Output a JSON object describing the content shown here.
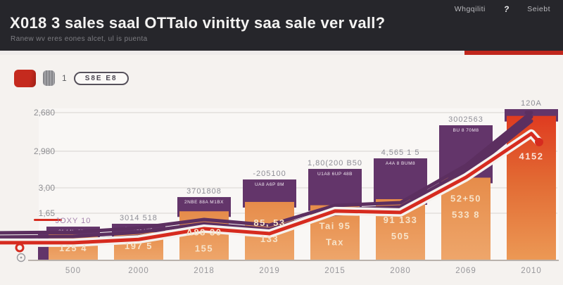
{
  "header": {
    "title": "X018 3 sales saal OTTalo vinitty saa sale ver vall?",
    "subtitle": "Ranew wv eres eones alcet, ul is puenta",
    "menu": [
      {
        "label": "Whgqiliti"
      },
      {
        "label": "Seiebt"
      }
    ],
    "help_icon": "?"
  },
  "legend": {
    "count_label": "1",
    "pill_label": "S8E E8",
    "red_swatch": "#c52a1e",
    "gray_swatch": "#8e8e92"
  },
  "colors": {
    "header_bg": "#26262b",
    "accent_red": "#c0271d",
    "page_bg": "#f5f2ef",
    "plot_bg": "#f9f7f5",
    "grid": "#dddad6",
    "bar_orange_top": "#e68c4a",
    "bar_orange_bottom": "#eea66b",
    "bar_red_top": "#df3b20",
    "bar_red_bottom": "#ec9955",
    "purple": "#63356a",
    "red_line": "#d62b1f",
    "purple_line": "#5c2f60",
    "axis_text": "#8f8f93",
    "inner_text": "#f7e3c9"
  },
  "chart_data": {
    "type": "bar",
    "title": "",
    "xlabel": "",
    "ylabel": "",
    "grid": true,
    "legend_position": "top-left",
    "ylim": [
      0,
      2870
    ],
    "categories": [
      "500",
      "2000",
      "2018",
      "2019",
      "2015",
      "2080",
      "2069",
      "2010"
    ],
    "yticks": [
      {
        "label": "2,680",
        "pos": 2680
      },
      {
        "label": "2,980",
        "pos": 1980
      },
      {
        "label": "3,00",
        "pos": 1315
      },
      {
        "label": "1,65",
        "pos": 855
      },
      {
        "label": "0",
        "pos": 0
      }
    ],
    "series": [
      {
        "name": "orange-bars",
        "type": "bar",
        "values": [
          470,
          510,
          890,
          1060,
          1000,
          1110,
          1500,
          2620
        ]
      },
      {
        "name": "purple-overlay",
        "type": "bar-segment",
        "tops": [
          612,
          664,
          1148,
          1467,
          1659,
          1850,
          2450,
          2743
        ]
      },
      {
        "name": "purple-line",
        "type": "line",
        "values": [
          510,
          587,
          740,
          638,
          995,
          1046,
          1722,
          2680
        ]
      },
      {
        "name": "red-line",
        "type": "line",
        "values": [
          320,
          380,
          575,
          485,
          895,
          870,
          1505,
          2300
        ],
        "end_dot": 2145
      }
    ],
    "bar_labels_above": [
      "JOXY 10",
      "3014 518",
      "3701808",
      "-205100",
      "1,80(200 B50",
      "4,565 1 5",
      "3002563",
      "120A"
    ],
    "bar_labels_inside": [
      [
        "125 4"
      ],
      [
        "197 5"
      ],
      [
        "A88 30",
        "155"
      ],
      [
        "85, 53",
        "133"
      ],
      [
        "Tai 95",
        "Tax"
      ],
      [
        "91 133",
        "505"
      ],
      [
        "52+50",
        "533 8"
      ],
      [
        "4152"
      ]
    ],
    "overlay_badge_texts": [
      "31 A4L .35M",
      "8 EU10 L69",
      "2NBE 88A M1BX",
      "UA8 A6P 8M",
      "U1A8 6UP 48B",
      "A4A 8 BUM8",
      "BU 8 70M8",
      ""
    ]
  }
}
